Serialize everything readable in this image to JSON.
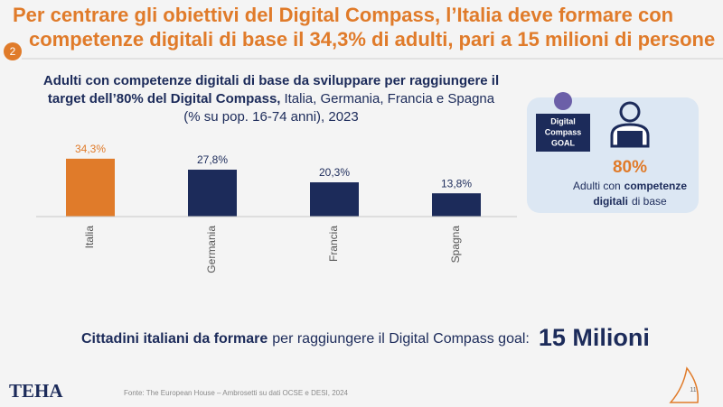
{
  "header": {
    "title_line1": "Per centrare gli obiettivi del Digital Compass, l’Italia deve formare con",
    "title_line2": "competenze digitali di base il 34,3% di adulti, pari a 15 milioni di persone",
    "badge": "2"
  },
  "chart_data": {
    "type": "bar",
    "title_line1": "Adulti con competenze digitali di base da sviluppare per raggiungere il",
    "title_line2_bold": "target dell’80% del Digital Compass,",
    "title_line2_rest": "Italia, Germania, Francia e Spagna",
    "subtitle": "(% su pop. 16-74 anni), 2023",
    "categories": [
      "Italia",
      "Germania",
      "Francia",
      "Spagna"
    ],
    "values": [
      34.3,
      27.8,
      20.3,
      13.8
    ],
    "value_labels": [
      "34,3%",
      "27,8%",
      "20,3%",
      "13,8%"
    ],
    "colors": [
      "#e07b2a",
      "#1c2b5a",
      "#1c2b5a",
      "#1c2b5a"
    ]
  },
  "goal": {
    "badge_line1": "Digital",
    "badge_line2": "Compass",
    "badge_line3": "GOAL",
    "value": "80%",
    "text_line1_a": "Adulti con",
    "text_line1_b": "competenze",
    "text_line2_a": "digitali",
    "text_line2_b": "di base"
  },
  "summary": {
    "bold": "Cittadini italiani da formare",
    "rest": "per raggiungere il Digital Compass goal:",
    "figure": "15 Milioni"
  },
  "footer": {
    "logo": "TEHA",
    "source": "Fonte: The European House – Ambrosetti su dati OCSE e DESI, 2024",
    "page": "11"
  }
}
